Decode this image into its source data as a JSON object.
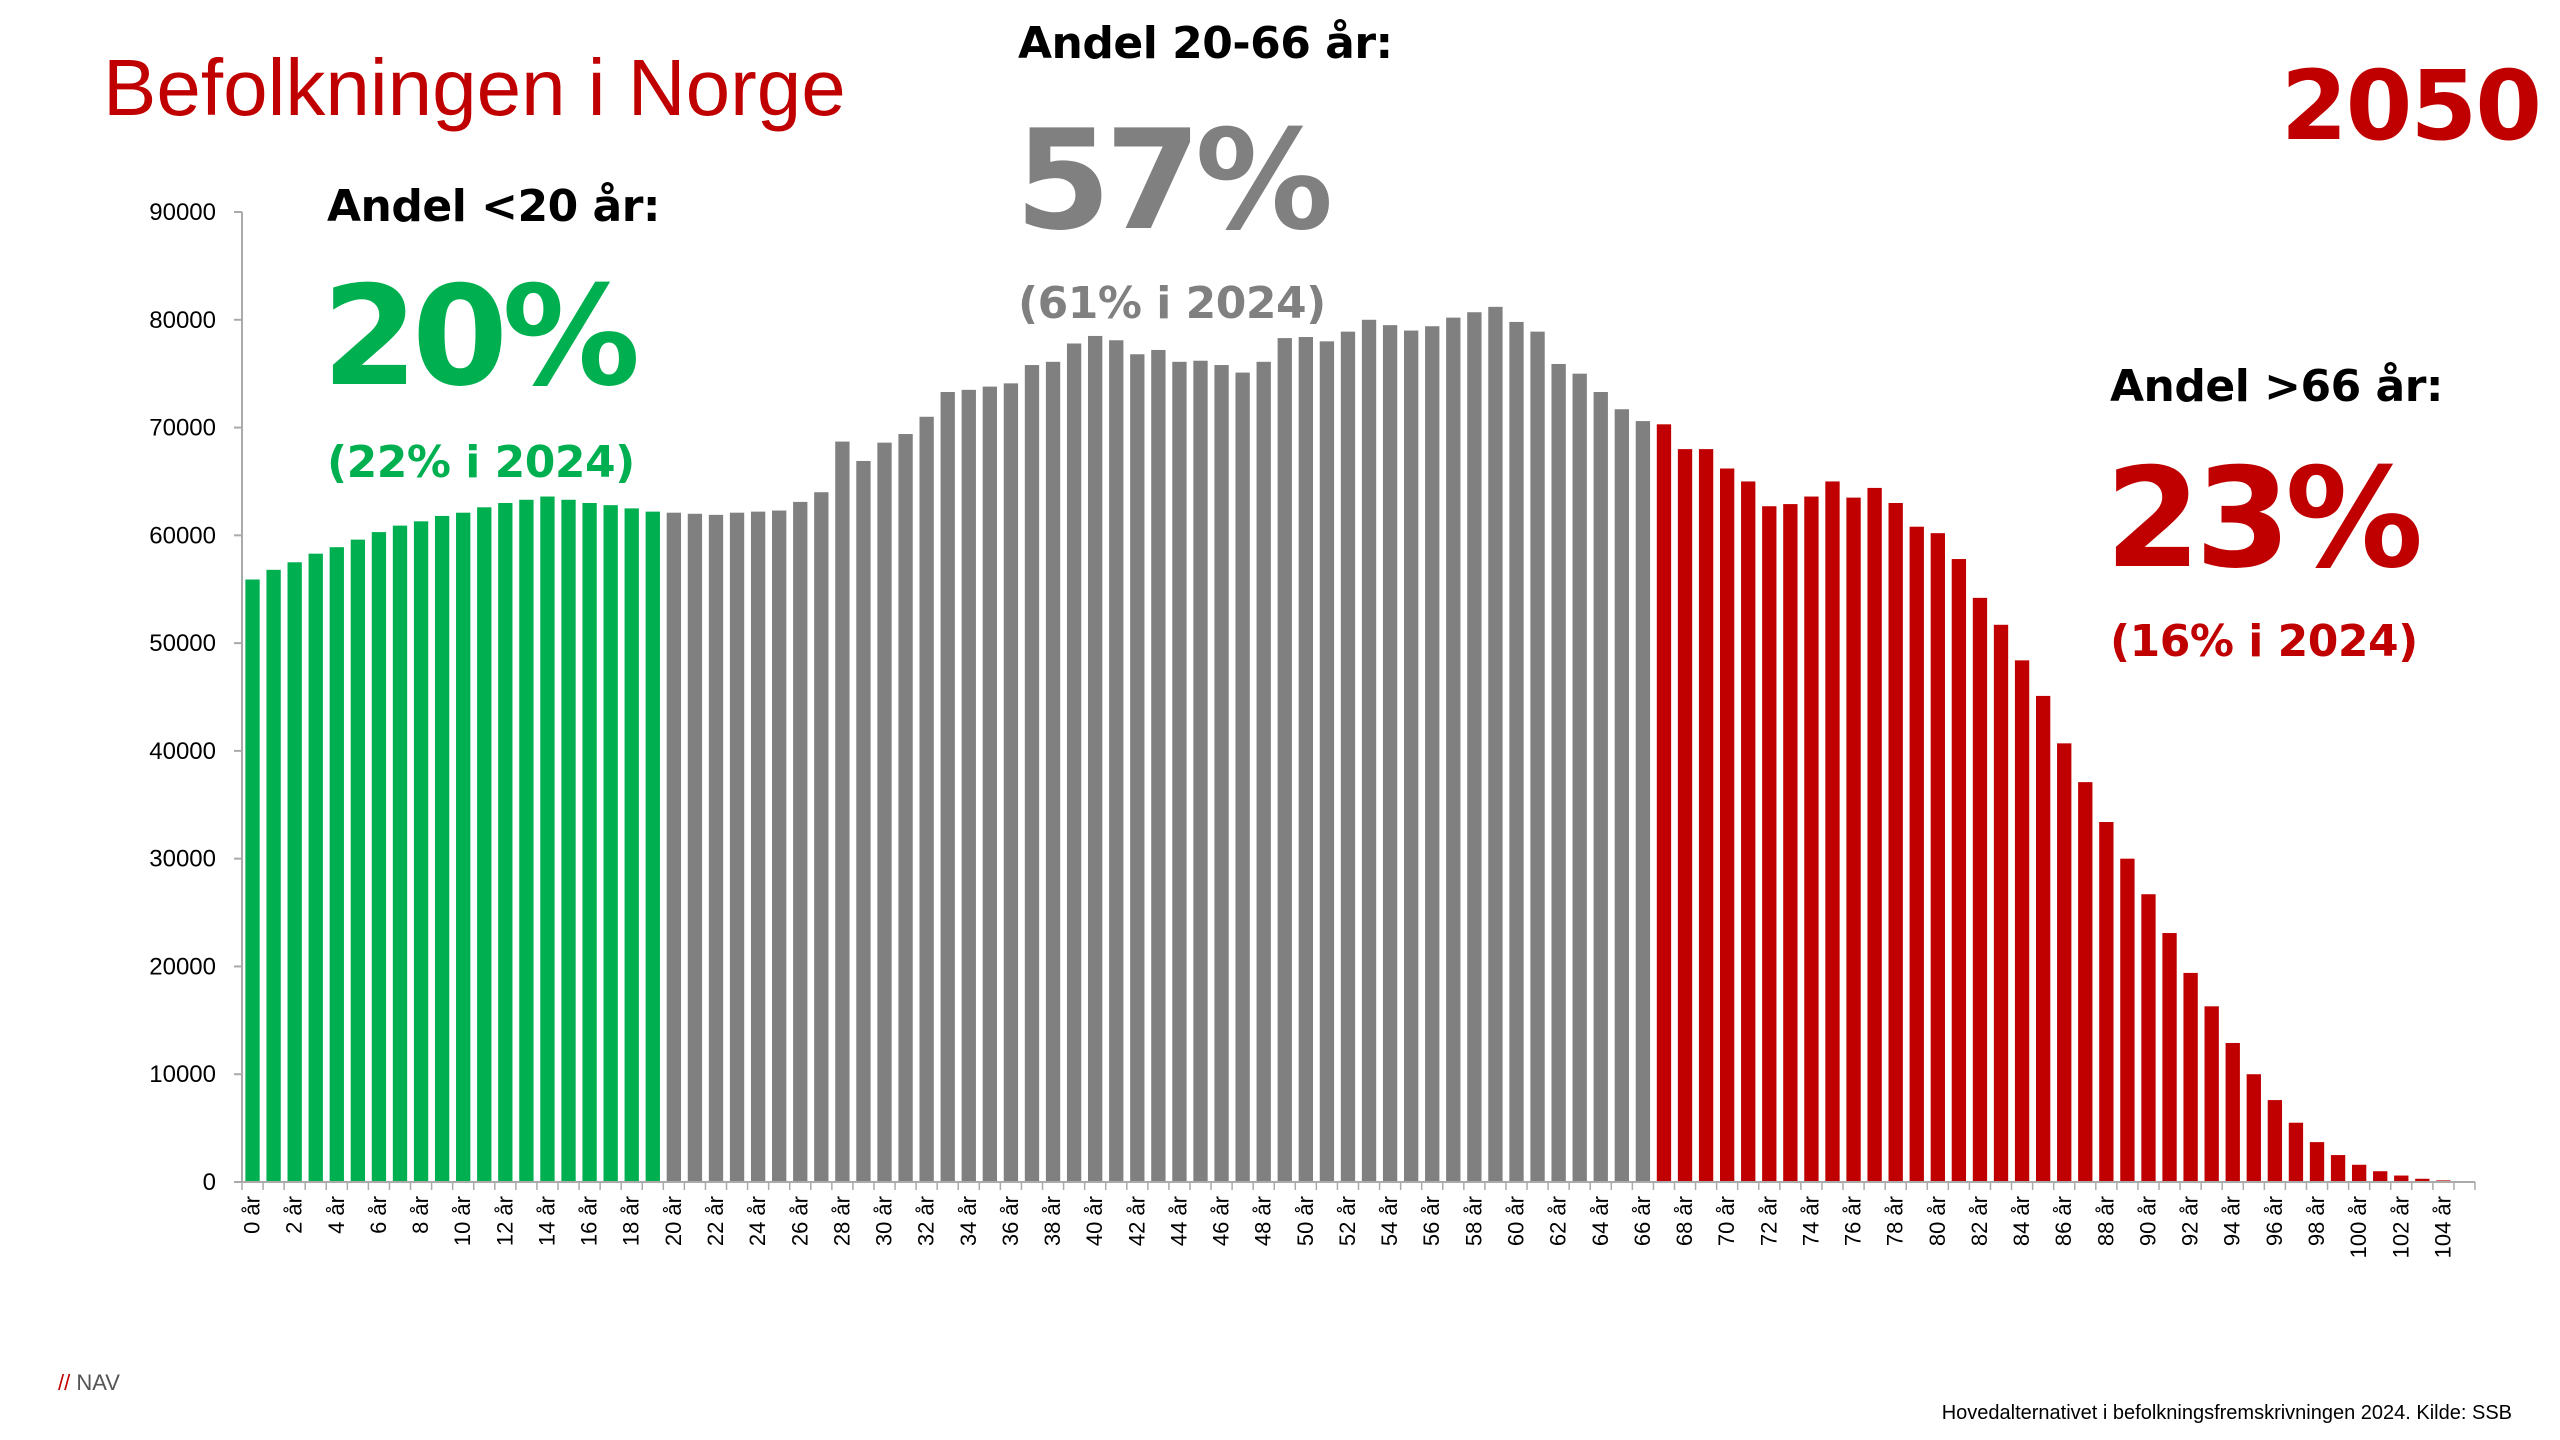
{
  "title": "Befolkningen i Norge",
  "year_label": "2050",
  "groups": {
    "young": {
      "header": "Andel <20 år:",
      "share": "20%",
      "comparison": "(22% i 2024)"
    },
    "working": {
      "header": "Andel 20-66 år:",
      "share": "57%",
      "comparison": "(61% i 2024)"
    },
    "old": {
      "header": "Andel >66 år:",
      "share": "23%",
      "comparison": "(16% i 2024)"
    }
  },
  "logo": {
    "slashes": "//",
    "text": "NAV"
  },
  "source": "Hovedalternativet i befolkningsfremskrivningen 2024. Kilde: SSB",
  "colors": {
    "title": "#c00000",
    "young": "#00b050",
    "working": "#808080",
    "old": "#c00000",
    "axis": "#aaaaaa"
  },
  "chart_data": {
    "type": "bar",
    "title": "",
    "xlabel": "",
    "ylabel": "",
    "ylim": [
      0,
      90000
    ],
    "yticks": [
      0,
      10000,
      20000,
      30000,
      40000,
      50000,
      60000,
      70000,
      80000,
      90000
    ],
    "grid": false,
    "category_suffix": " år",
    "x": [
      0,
      1,
      2,
      3,
      4,
      5,
      6,
      7,
      8,
      9,
      10,
      11,
      12,
      13,
      14,
      15,
      16,
      17,
      18,
      19,
      20,
      21,
      22,
      23,
      24,
      25,
      26,
      27,
      28,
      29,
      30,
      31,
      32,
      33,
      34,
      35,
      36,
      37,
      38,
      39,
      40,
      41,
      42,
      43,
      44,
      45,
      46,
      47,
      48,
      49,
      50,
      51,
      52,
      53,
      54,
      55,
      56,
      57,
      58,
      59,
      60,
      61,
      62,
      63,
      64,
      65,
      66,
      67,
      68,
      69,
      70,
      71,
      72,
      73,
      74,
      75,
      76,
      77,
      78,
      79,
      80,
      81,
      82,
      83,
      84,
      85,
      86,
      87,
      88,
      89,
      90,
      91,
      92,
      93,
      94,
      95,
      96,
      97,
      98,
      99,
      100,
      101,
      102,
      103,
      104,
      105
    ],
    "tick_every": 2,
    "values": [
      55900,
      56800,
      57500,
      58300,
      58900,
      59600,
      60300,
      60900,
      61300,
      61800,
      62100,
      62600,
      63000,
      63300,
      63600,
      63300,
      63000,
      62800,
      62500,
      62200,
      62100,
      62000,
      61900,
      62100,
      62200,
      62300,
      63100,
      64000,
      68700,
      66900,
      68600,
      69400,
      71000,
      73300,
      73500,
      73800,
      74100,
      75800,
      76100,
      77800,
      78500,
      78100,
      76800,
      77200,
      76100,
      76200,
      75800,
      75100,
      76100,
      78300,
      78400,
      78000,
      78900,
      80000,
      79500,
      79000,
      79400,
      80200,
      80700,
      81200,
      79800,
      78900,
      75900,
      75000,
      73300,
      71700,
      70600,
      70300,
      68000,
      68000,
      66200,
      65000,
      62700,
      62900,
      63600,
      65000,
      63500,
      64400,
      63000,
      60800,
      60200,
      57800,
      54200,
      51700,
      48400,
      45100,
      40700,
      37100,
      33400,
      30000,
      26700,
      23100,
      19400,
      16300,
      12900,
      10000,
      7600,
      5500,
      3700,
      2500,
      1600,
      1000,
      600,
      300,
      150,
      80
    ],
    "groups": [
      {
        "name": "young",
        "from": 0,
        "to": 19
      },
      {
        "name": "working",
        "from": 20,
        "to": 66
      },
      {
        "name": "old",
        "from": 67,
        "to": 105
      }
    ]
  }
}
